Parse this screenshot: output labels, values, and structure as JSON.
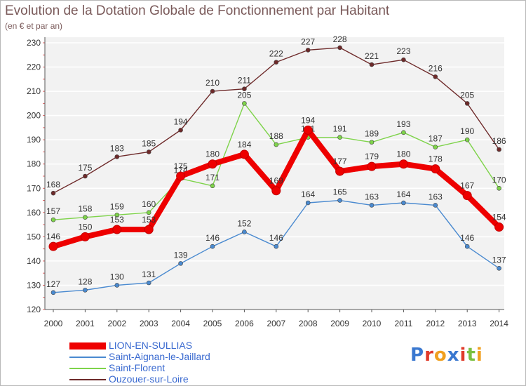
{
  "chart_data": {
    "type": "line",
    "title": "Evolution de la Dotation Globale de Fonctionnement par Habitant",
    "subtitle": "(en € et par an)",
    "xlabel": "",
    "ylabel": "",
    "ylim": [
      120,
      230
    ],
    "yticks": [
      120,
      130,
      140,
      150,
      160,
      170,
      180,
      190,
      200,
      210,
      220,
      230
    ],
    "categories": [
      "2000",
      "2001",
      "2002",
      "2003",
      "2004",
      "2005",
      "2006",
      "2007",
      "2008",
      "2009",
      "2010",
      "2011",
      "2012",
      "2013",
      "2014"
    ],
    "grid": true,
    "legend_position": "bottom-left",
    "series": [
      {
        "name": "Ouzouer-sur-Loire",
        "color": "#6e2a2a",
        "values": [
          168,
          175,
          183,
          185,
          194,
          210,
          211,
          222,
          227,
          228,
          221,
          223,
          216,
          205,
          186
        ]
      },
      {
        "name": "Saint-Florent",
        "color": "#7ed34a",
        "values": [
          157,
          158,
          159,
          160,
          174,
          171,
          205,
          188,
          191,
          191,
          189,
          193,
          187,
          190,
          170
        ]
      },
      {
        "name": "Saint-Aignan-le-Jaillard",
        "color": "#4a8ad0",
        "values": [
          127,
          128,
          130,
          131,
          139,
          146,
          152,
          146,
          164,
          165,
          163,
          164,
          163,
          146,
          137
        ]
      },
      {
        "name": "LION-EN-SULLIAS",
        "color": "#ee0000",
        "values": [
          146,
          150,
          153,
          153,
          175,
          180,
          184,
          169,
          194,
          177,
          179,
          180,
          178,
          167,
          154
        ]
      }
    ],
    "legend_order": [
      "LION-EN-SULLIAS",
      "Saint-Aignan-le-Jaillard",
      "Saint-Florent",
      "Ouzouer-sur-Loire"
    ]
  },
  "logo": {
    "text": "Proxiti"
  }
}
